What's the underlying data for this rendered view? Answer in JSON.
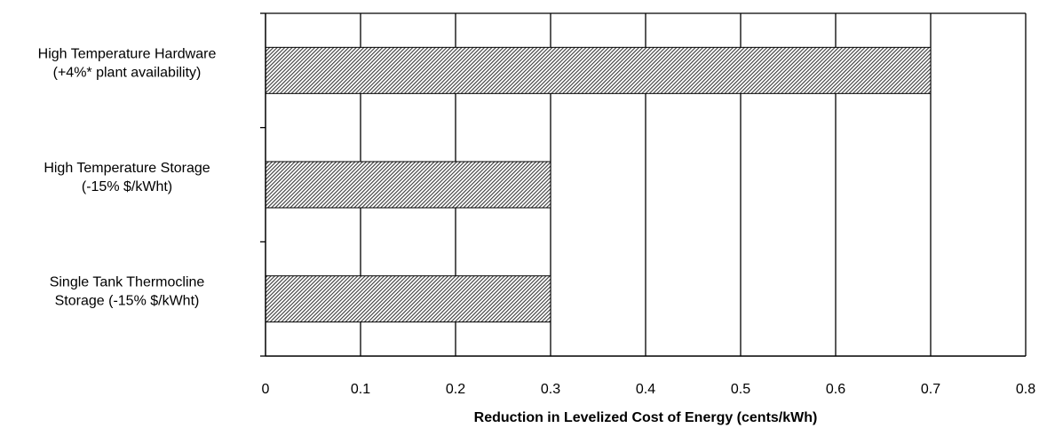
{
  "chart_data": {
    "type": "bar",
    "orientation": "horizontal",
    "categories": [
      [
        "High Temperature  Hardware",
        "(+4%* plant availability)"
      ],
      [
        "High Temperature Storage",
        "(-15% $/kWht)"
      ],
      [
        "Single Tank Thermocline",
        "Storage  (-15% $/kWht)"
      ]
    ],
    "values": [
      0.7,
      0.3,
      0.3
    ],
    "xlabel": "Reduction in  Levelized Cost of Energy (cents/kWh)",
    "ylabel": "",
    "xlim": [
      0,
      0.8
    ],
    "xticks": [
      "0",
      "0.1",
      "0.2",
      "0.3",
      "0.4",
      "0.5",
      "0.6",
      "0.7",
      "0.8"
    ],
    "grid": true,
    "bar_fill": "hatched",
    "bar_color": "#444444"
  }
}
